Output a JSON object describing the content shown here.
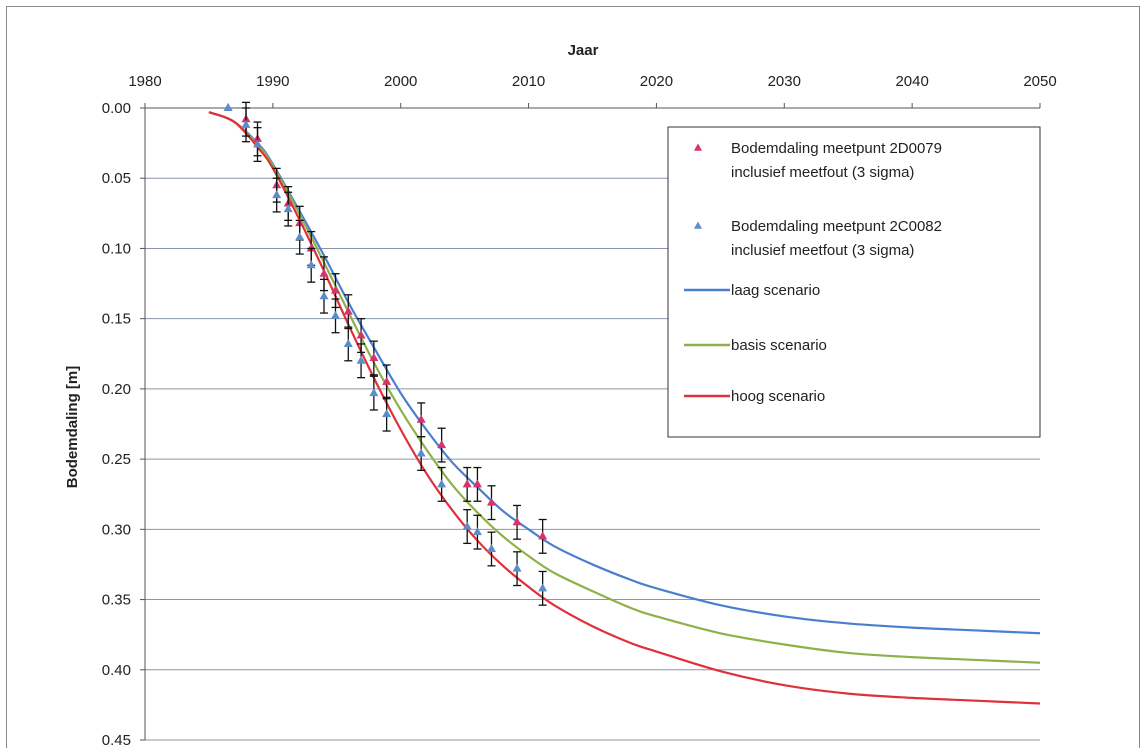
{
  "chart_data": {
    "type": "line",
    "xlabel": "Jaar",
    "ylabel": "Bodemdaling [m]",
    "x_axis_position": "top",
    "y_axis_inverted": true,
    "xlim": [
      1980,
      2050
    ],
    "ylim": [
      0,
      0.45
    ],
    "x_ticks": [
      "1980",
      "1990",
      "2000",
      "2010",
      "2020",
      "2030",
      "2040",
      "2050"
    ],
    "y_ticks": [
      "0.00",
      "0.05",
      "0.10",
      "0.15",
      "0.20",
      "0.25",
      "0.30",
      "0.35",
      "0.40",
      "0.45"
    ],
    "grid": "horizontal",
    "legend_position": "top-right",
    "series": [
      {
        "name": "Bodemdaling meetpunt 2D0079 inclusief meetfout (3 sigma)",
        "kind": "scatter",
        "marker": "triangle",
        "color": "#d6336c",
        "error": 0.012,
        "x": [
          1986.5,
          1987.9,
          1988.8,
          1990.3,
          1991.2,
          1992.1,
          1993.0,
          1994.0,
          1994.9,
          1995.9,
          1996.9,
          1997.9,
          1998.9,
          2001.6,
          2003.2,
          2005.2,
          2006.0,
          2007.1,
          2009.1,
          2011.1
        ],
        "y": [
          0.0,
          0.008,
          0.022,
          0.055,
          0.068,
          0.082,
          0.1,
          0.118,
          0.13,
          0.145,
          0.162,
          0.178,
          0.195,
          0.222,
          0.24,
          0.268,
          0.268,
          0.281,
          0.295,
          0.305
        ]
      },
      {
        "name": "Bodemdaling meetpunt 2C0082 inclusief meetfout (3 sigma)",
        "kind": "scatter",
        "marker": "triangle",
        "color": "#5b8ec9",
        "error": 0.012,
        "x": [
          1986.5,
          1987.9,
          1988.8,
          1990.3,
          1991.2,
          1992.1,
          1993.0,
          1994.0,
          1994.9,
          1995.9,
          1996.9,
          1997.9,
          1998.9,
          2001.6,
          2003.2,
          2005.2,
          2006.0,
          2007.1,
          2009.1,
          2011.1
        ],
        "y": [
          0.0,
          0.012,
          0.026,
          0.062,
          0.072,
          0.092,
          0.112,
          0.134,
          0.148,
          0.168,
          0.18,
          0.203,
          0.218,
          0.246,
          0.268,
          0.298,
          0.302,
          0.314,
          0.328,
          0.342
        ]
      },
      {
        "name": "laag scenario",
        "kind": "line",
        "color": "#4a7fd0",
        "x": [
          1985,
          1987,
          1989,
          1990,
          1992,
          1994,
          1996,
          1998,
          2000,
          2002,
          2004,
          2006,
          2008,
          2010,
          2012,
          2015,
          2018,
          2020,
          2025,
          2030,
          2035,
          2040,
          2045,
          2050
        ],
        "y": [
          0.003,
          0.01,
          0.027,
          0.04,
          0.072,
          0.105,
          0.14,
          0.172,
          0.203,
          0.229,
          0.252,
          0.27,
          0.287,
          0.3,
          0.312,
          0.325,
          0.336,
          0.342,
          0.354,
          0.362,
          0.367,
          0.37,
          0.372,
          0.374
        ]
      },
      {
        "name": "basis scenario",
        "kind": "line",
        "color": "#8fb04a",
        "x": [
          1985,
          1987,
          1989,
          1990,
          1992,
          1994,
          1996,
          1998,
          2000,
          2002,
          2004,
          2006,
          2008,
          2010,
          2012,
          2015,
          2018,
          2020,
          2025,
          2030,
          2035,
          2040,
          2045,
          2050
        ],
        "y": [
          0.003,
          0.01,
          0.028,
          0.041,
          0.074,
          0.11,
          0.147,
          0.183,
          0.215,
          0.243,
          0.268,
          0.288,
          0.305,
          0.319,
          0.331,
          0.344,
          0.356,
          0.362,
          0.374,
          0.382,
          0.388,
          0.391,
          0.393,
          0.395
        ]
      },
      {
        "name": "hoog scenario",
        "kind": "line",
        "color": "#e0303a",
        "x": [
          1985,
          1987,
          1989,
          1990,
          1992,
          1994,
          1996,
          1998,
          2000,
          2002,
          2004,
          2006,
          2008,
          2010,
          2012,
          2015,
          2018,
          2020,
          2025,
          2030,
          2035,
          2040,
          2045,
          2050
        ],
        "y": [
          0.003,
          0.01,
          0.03,
          0.043,
          0.078,
          0.116,
          0.156,
          0.194,
          0.229,
          0.26,
          0.286,
          0.308,
          0.326,
          0.341,
          0.354,
          0.369,
          0.381,
          0.387,
          0.401,
          0.411,
          0.417,
          0.42,
          0.422,
          0.424
        ]
      }
    ]
  }
}
